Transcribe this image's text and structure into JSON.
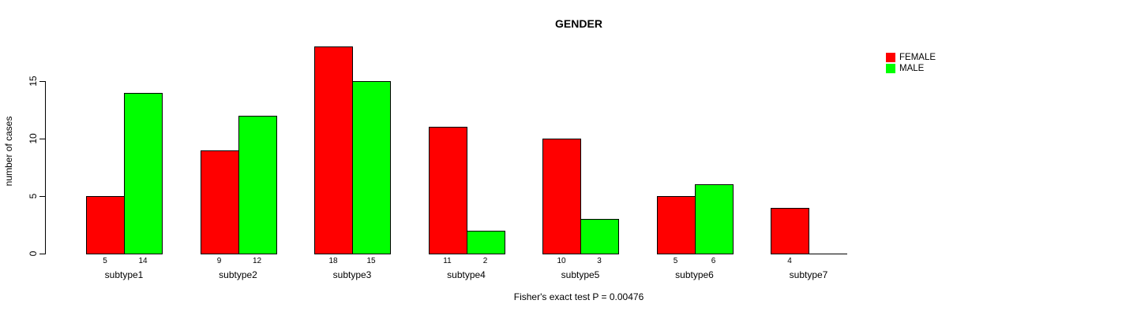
{
  "chart_data": {
    "type": "bar",
    "title": "GENDER",
    "ylabel": "number of cases",
    "xlabel": "",
    "categories": [
      "subtype1",
      "subtype2",
      "subtype3",
      "subtype4",
      "subtype5",
      "subtype6",
      "subtype7"
    ],
    "series": [
      {
        "name": "FEMALE",
        "color": "#ff0000",
        "values": [
          5,
          9,
          18,
          11,
          10,
          5,
          4
        ]
      },
      {
        "name": "MALE",
        "color": "#00ff00",
        "values": [
          14,
          12,
          15,
          2,
          3,
          6,
          0
        ]
      }
    ],
    "bar_value_labels_shown": true,
    "zero_value_labels_hidden": true,
    "yticks": [
      0,
      5,
      10,
      15
    ],
    "ylim": [
      0,
      18
    ],
    "grid": false,
    "legend_position": "top-right",
    "annotation": "Fisher's exact test P = 0.00476",
    "bar_border_color": "#000000",
    "axis_color": "#000000"
  }
}
